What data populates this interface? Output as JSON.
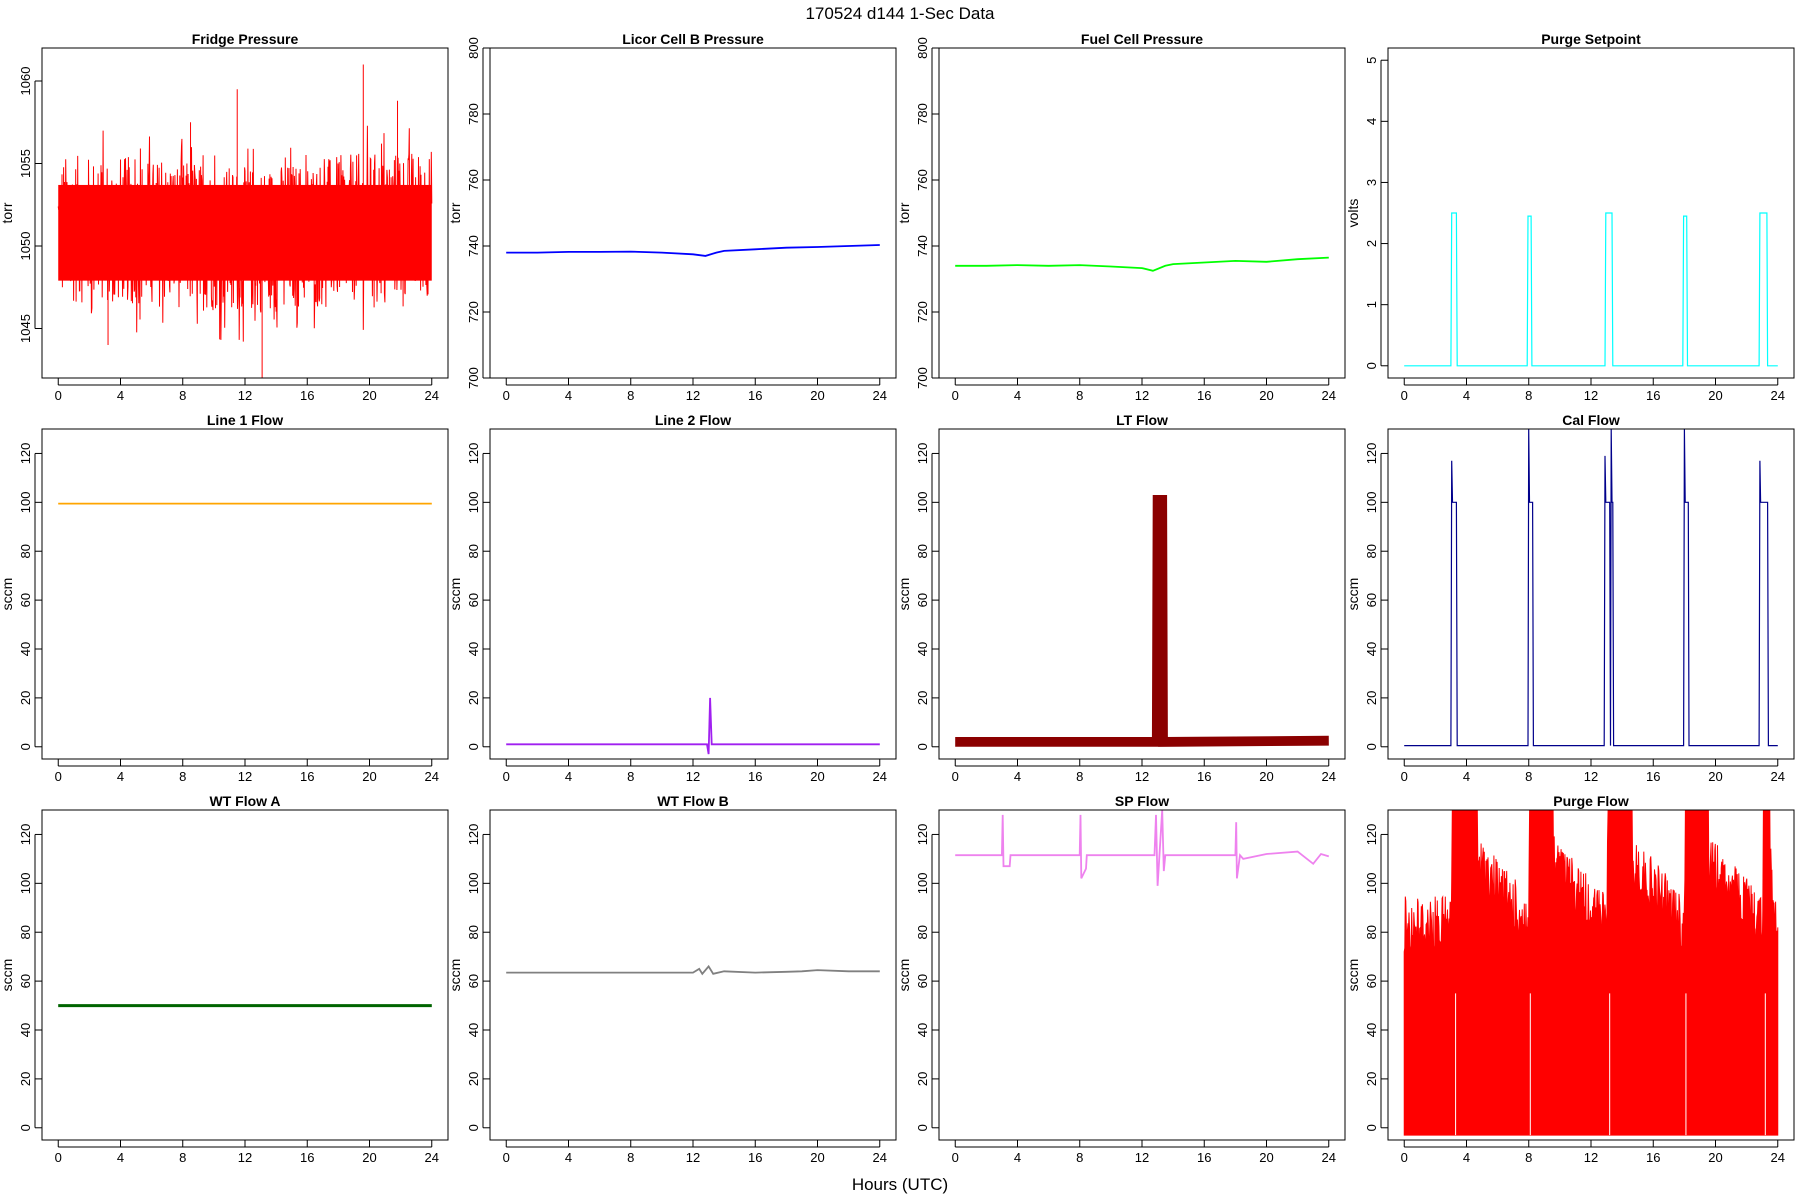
{
  "figure": {
    "title": "170524   d144   1-Sec Data",
    "xlabel": "Hours (UTC)"
  },
  "chart_data": [
    {
      "type": "line",
      "title": "Fridge Pressure",
      "ylabel": "torr",
      "xlim": [
        0,
        24
      ],
      "ylim": [
        1042,
        1062
      ],
      "xticks": [
        0,
        4,
        8,
        12,
        16,
        20,
        24
      ],
      "yticks": [
        1045,
        1050,
        1055,
        1060
      ],
      "color": "#ff0000",
      "style": "noise",
      "series": [
        {
          "x": [
            0,
            2,
            4,
            6,
            8,
            10,
            12,
            14,
            16,
            18,
            20,
            22,
            24
          ],
          "y": [
            1051,
            1051,
            1051,
            1050.8,
            1050.7,
            1050.5,
            1050.3,
            1050.5,
            1050.7,
            1051,
            1051.2,
            1051.3,
            1051.4
          ]
        }
      ],
      "noise": {
        "band": 4.5,
        "spikes": [
          [
            11.5,
            1059.5
          ],
          [
            13.1,
            1042
          ],
          [
            19.6,
            1061
          ],
          [
            3.2,
            1044
          ],
          [
            21.8,
            1058.8
          ],
          [
            8.5,
            1057.5
          ]
        ]
      }
    },
    {
      "type": "line",
      "title": "Licor Cell B Pressure",
      "ylabel": "torr",
      "xlim": [
        0,
        24
      ],
      "ylim": [
        700,
        800
      ],
      "xticks": [
        0,
        4,
        8,
        12,
        16,
        20,
        24
      ],
      "yticks": [
        700,
        720,
        740,
        760,
        780,
        800
      ],
      "color": "#0000ff",
      "style": "line",
      "series": [
        {
          "x": [
            0,
            2,
            4,
            6,
            8,
            10,
            12,
            12.8,
            13.5,
            14,
            16,
            18,
            20,
            22,
            24
          ],
          "y": [
            738,
            738,
            738.2,
            738.2,
            738.3,
            738,
            737.5,
            737,
            738,
            738.5,
            739,
            739.5,
            739.7,
            740,
            740.3
          ]
        }
      ]
    },
    {
      "type": "line",
      "title": "Fuel Cell Pressure",
      "ylabel": "torr",
      "xlim": [
        0,
        24
      ],
      "ylim": [
        700,
        800
      ],
      "xticks": [
        0,
        4,
        8,
        12,
        16,
        20,
        24
      ],
      "yticks": [
        700,
        720,
        740,
        760,
        780,
        800
      ],
      "color": "#00ff00",
      "style": "line",
      "series": [
        {
          "x": [
            0,
            2,
            4,
            6,
            8,
            10,
            12,
            12.7,
            13.5,
            14,
            16,
            18,
            20,
            22,
            24
          ],
          "y": [
            734,
            734,
            734.2,
            734,
            734.2,
            733.8,
            733.3,
            732.5,
            734,
            734.5,
            735,
            735.5,
            735.2,
            736,
            736.5
          ]
        }
      ]
    },
    {
      "type": "line",
      "title": "Purge Setpoint",
      "ylabel": "volts",
      "xlim": [
        0,
        24
      ],
      "ylim": [
        -0.2,
        5.2
      ],
      "xticks": [
        0,
        4,
        8,
        12,
        16,
        20,
        24
      ],
      "yticks": [
        0,
        1,
        2,
        3,
        4,
        5
      ],
      "color": "#00ffff",
      "style": "pulses",
      "series": [
        {
          "x": [
            0,
            3,
            3.05,
            3.35,
            3.4,
            7.9,
            7.95,
            8.15,
            8.2,
            12.9,
            12.95,
            13.35,
            13.4,
            17.9,
            17.95,
            18.15,
            18.2,
            22.8,
            22.85,
            23.3,
            23.35,
            24
          ],
          "y": [
            0,
            0,
            2.5,
            2.5,
            0,
            0,
            2.45,
            2.45,
            0,
            0,
            2.5,
            2.5,
            0,
            0,
            2.45,
            2.45,
            0,
            0,
            2.5,
            2.5,
            0,
            0
          ]
        }
      ]
    },
    {
      "type": "line",
      "title": "Line 1 Flow",
      "ylabel": "sccm",
      "xlim": [
        0,
        24
      ],
      "ylim": [
        -5,
        130
      ],
      "xticks": [
        0,
        4,
        8,
        12,
        16,
        20,
        24
      ],
      "yticks": [
        0,
        20,
        40,
        60,
        80,
        100,
        120
      ],
      "color": "#ffa500",
      "style": "line",
      "series": [
        {
          "x": [
            0,
            4,
            8,
            12,
            16,
            20,
            24
          ],
          "y": [
            99.5,
            99.5,
            99.5,
            99.5,
            99.5,
            99.5,
            99.5
          ]
        }
      ]
    },
    {
      "type": "line",
      "title": "Line 2 Flow",
      "ylabel": "sccm",
      "xlim": [
        0,
        24
      ],
      "ylim": [
        -5,
        130
      ],
      "xticks": [
        0,
        4,
        8,
        12,
        16,
        20,
        24
      ],
      "yticks": [
        0,
        20,
        40,
        60,
        80,
        100,
        120
      ],
      "color": "#a020f0",
      "style": "line",
      "series": [
        {
          "x": [
            0,
            12.9,
            13.0,
            13.1,
            13.2,
            13.3,
            24
          ],
          "y": [
            1,
            1,
            -3,
            20,
            1,
            1,
            1
          ]
        }
      ]
    },
    {
      "type": "line",
      "title": "LT Flow",
      "ylabel": "sccm",
      "xlim": [
        0,
        24
      ],
      "ylim": [
        -5,
        130
      ],
      "xticks": [
        0,
        4,
        8,
        12,
        16,
        20,
        24
      ],
      "yticks": [
        0,
        20,
        40,
        60,
        80,
        100,
        120
      ],
      "color": "#8b0000",
      "style": "band",
      "series": [
        {
          "x": [
            0,
            12.95,
            13.0,
            13.3,
            13.35,
            24
          ],
          "y": [
            2,
            2,
            101,
            101,
            2,
            2.5
          ]
        }
      ],
      "band": 4
    },
    {
      "type": "line",
      "title": "Cal Flow",
      "ylabel": "sccm",
      "xlim": [
        0,
        24
      ],
      "ylim": [
        -5,
        130
      ],
      "xticks": [
        0,
        4,
        8,
        12,
        16,
        20,
        24
      ],
      "yticks": [
        0,
        20,
        40,
        60,
        80,
        100,
        120
      ],
      "color": "#00008b",
      "style": "pulses",
      "series": [
        {
          "x": [
            0,
            3,
            3.05,
            3.1,
            3.35,
            3.4,
            7.95,
            8.0,
            8.05,
            8.25,
            8.3,
            12.85,
            12.9,
            12.95,
            13.2,
            13.25,
            13.3,
            13.35,
            13.4,
            13.45,
            17.95,
            18.0,
            18.05,
            18.25,
            18.3,
            22.8,
            22.85,
            22.9,
            23.35,
            23.4,
            24
          ],
          "y": [
            0.5,
            0.5,
            117,
            100,
            100,
            0.5,
            0.5,
            130,
            100,
            100,
            0.5,
            0.5,
            119,
            100,
            100,
            0.5,
            130,
            100,
            100,
            0.5,
            0.5,
            130,
            100,
            100,
            0.5,
            0.5,
            117,
            100,
            100,
            0.5,
            0.5
          ]
        }
      ]
    },
    {
      "type": "line",
      "title": "WT Flow A",
      "ylabel": "sccm",
      "xlim": [
        0,
        24
      ],
      "ylim": [
        -5,
        130
      ],
      "xticks": [
        0,
        4,
        8,
        12,
        16,
        20,
        24
      ],
      "yticks": [
        0,
        20,
        40,
        60,
        80,
        100,
        120
      ],
      "color": "#006400",
      "style": "band",
      "series": [
        {
          "x": [
            0,
            24
          ],
          "y": [
            50,
            50
          ]
        }
      ],
      "band": 1.2
    },
    {
      "type": "line",
      "title": "WT Flow B",
      "ylabel": "sccm",
      "xlim": [
        0,
        24
      ],
      "ylim": [
        -5,
        130
      ],
      "xticks": [
        0,
        4,
        8,
        12,
        16,
        20,
        24
      ],
      "yticks": [
        0,
        20,
        40,
        60,
        80,
        100,
        120
      ],
      "color": "#808080",
      "style": "line",
      "series": [
        {
          "x": [
            0,
            12,
            12.4,
            12.6,
            13,
            13.3,
            14,
            16,
            18,
            19,
            20,
            22,
            24
          ],
          "y": [
            63.5,
            63.5,
            65,
            63,
            66,
            63,
            64,
            63.5,
            63.8,
            64,
            64.5,
            64,
            64
          ]
        }
      ]
    },
    {
      "type": "line",
      "title": "SP Flow",
      "ylabel": "sccm",
      "xlim": [
        0,
        24
      ],
      "ylim": [
        -5,
        130
      ],
      "xticks": [
        0,
        4,
        8,
        12,
        16,
        20,
        24
      ],
      "yticks": [
        0,
        20,
        40,
        60,
        80,
        100,
        120
      ],
      "color": "#ee82ee",
      "style": "line",
      "series": [
        {
          "x": [
            0,
            3,
            3.05,
            3.1,
            3.5,
            3.55,
            8,
            8.05,
            8.1,
            8.4,
            8.45,
            12.8,
            12.9,
            13,
            13.3,
            13.4,
            13.5,
            18,
            18.05,
            18.1,
            18.3,
            18.5,
            20,
            22,
            23,
            23.5,
            24
          ],
          "y": [
            111.5,
            111.5,
            128,
            107,
            107,
            111.5,
            111.5,
            128,
            102,
            106,
            111.5,
            111.5,
            128,
            99,
            130,
            105,
            111.5,
            111.5,
            125,
            102,
            111.5,
            110,
            112,
            113,
            108,
            112,
            111
          ]
        }
      ]
    },
    {
      "type": "line",
      "title": "Purge Flow",
      "ylabel": "sccm",
      "xlim": [
        0,
        24
      ],
      "ylim": [
        -5,
        130
      ],
      "xticks": [
        0,
        4,
        8,
        12,
        16,
        20,
        24
      ],
      "yticks": [
        0,
        20,
        40,
        60,
        80,
        100,
        120
      ],
      "color": "#ff0000",
      "style": "fill",
      "series": [
        {
          "x": [
            0,
            3,
            3.1,
            3.4,
            8,
            8.05,
            8.2,
            13,
            13.1,
            13.3,
            18,
            18.05,
            18.2,
            23,
            23.1,
            23.3,
            24
          ],
          "y": [
            95,
            95,
            130,
            130,
            95,
            130,
            130,
            95,
            130,
            130,
            95,
            130,
            130,
            95,
            130,
            130,
            95
          ]
        }
      ],
      "floor": -3
    }
  ]
}
